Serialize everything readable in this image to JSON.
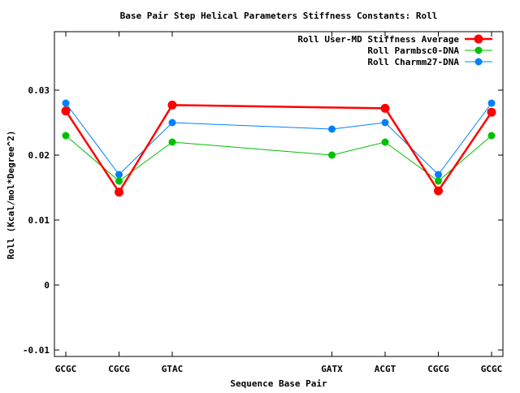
{
  "chart_data": {
    "type": "line",
    "title": "Base Pair Step Helical Parameters Stiffness Constants: Roll",
    "xlabel": "Sequence Base Pair",
    "ylabel": "Roll (Kcal/mol*Degree^2)",
    "categories": [
      "GCGC",
      "CGCG",
      "GTAC",
      "GATX",
      "ACGT",
      "CGCG",
      "GCGC"
    ],
    "x": [
      0,
      1,
      2,
      5,
      6,
      7,
      8
    ],
    "xlim": [
      0,
      8
    ],
    "ylim": [
      -0.011,
      0.039
    ],
    "yticks": [
      -0.01,
      0,
      0.01,
      0.02,
      0.03
    ],
    "ytick_labels": [
      "-0.01",
      "0",
      "0.01",
      "0.02",
      "0.03"
    ],
    "legend_position": "top-right",
    "grid": false,
    "series": [
      {
        "name": "Roll User-MD Stiffness Average",
        "color": "#ff0000",
        "values": [
          0.0268,
          0.0143,
          0.0277,
          null,
          0.0272,
          0.0145,
          0.0266
        ]
      },
      {
        "name": "Roll Parmbsc0-DNA",
        "color": "#00c000",
        "values": [
          0.023,
          0.016,
          0.022,
          0.02,
          0.022,
          0.016,
          0.023
        ]
      },
      {
        "name": "Roll Charmm27-DNA",
        "color": "#0080ff",
        "values": [
          0.028,
          0.017,
          0.025,
          0.024,
          0.025,
          0.017,
          0.028
        ]
      }
    ]
  }
}
